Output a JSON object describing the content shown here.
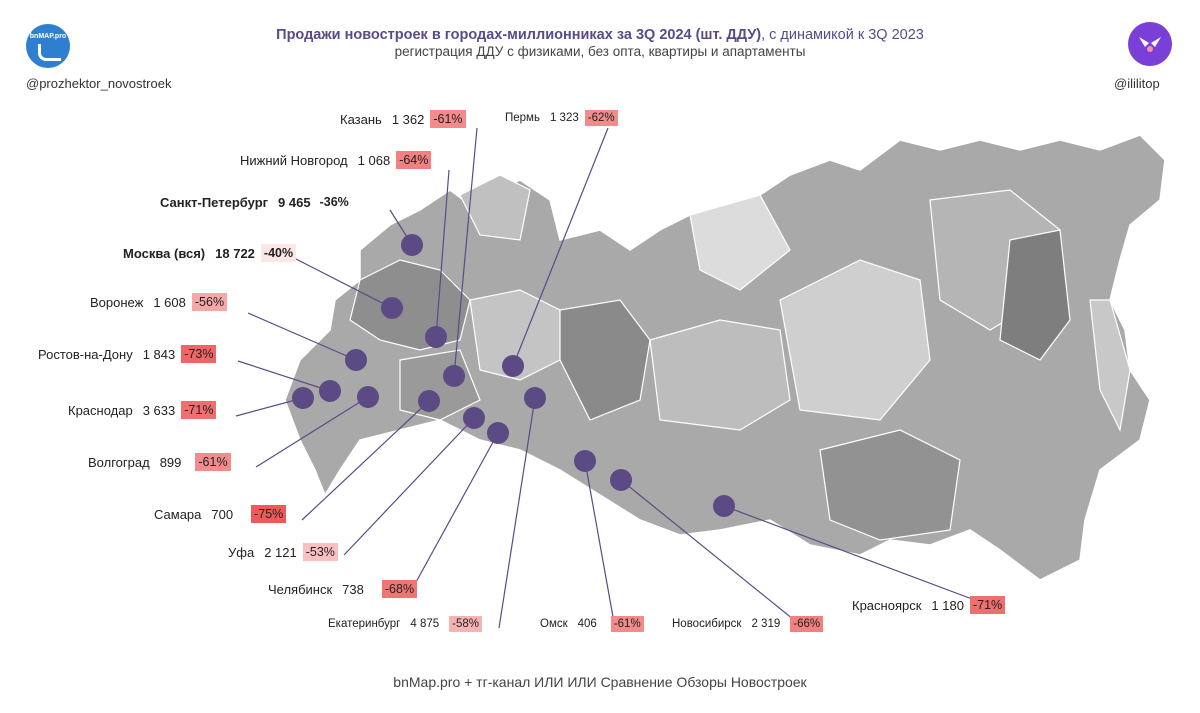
{
  "header": {
    "title_bold": "Продажи новостроек в городах-миллионниках за 3Q 2024 (шт. ДДУ)",
    "title_rest": ", с динамикой к 3Q 2023",
    "subtitle": "регистрация ДДУ с физиками, без опта, квартиры и апартаменты",
    "left_handle": "@prozhektor_novostroek",
    "right_handle": "@ililitop",
    "logo_text": "bnMAP.pro"
  },
  "footer": "bnMap.pro + тг-канал ИЛИ ИЛИ Сравнение Обзоры Новостроек",
  "colors": {
    "accent": "#5a4a8a",
    "dot": "#5c4a85",
    "map_dark": "#8c8c8c",
    "map_light": "#c8c8c8"
  },
  "cities": [
    {
      "name": "Казань",
      "value": "1 362",
      "change": "-61%",
      "color": "#f28b8b"
    },
    {
      "name": "Пермь",
      "value": "1 323",
      "change": "-62%",
      "color": "#f28b8b"
    },
    {
      "name": "Нижний Новгород",
      "value": "1 068",
      "change": "-64%",
      "color": "#f28080"
    },
    {
      "name": "Санкт-Петербург",
      "value": "9 465",
      "change": "-36%",
      "color": "#ffffff"
    },
    {
      "name": "Москва (вся)",
      "value": "18 722",
      "change": "-40%",
      "color": "#fde6e6"
    },
    {
      "name": "Воронеж",
      "value": "1 608",
      "change": "-56%",
      "color": "#f5a8a8"
    },
    {
      "name": "Ростов-на-Дону",
      "value": "1 843",
      "change": "-73%",
      "color": "#ee6565"
    },
    {
      "name": "Краснодар",
      "value": "3 633",
      "change": "-71%",
      "color": "#ef6e6e"
    },
    {
      "name": "Волгоград",
      "value": "899",
      "change": "-61%",
      "color": "#f28b8b"
    },
    {
      "name": "Самара",
      "value": "700",
      "change": "-75%",
      "color": "#ec5a5a"
    },
    {
      "name": "Уфа",
      "value": "2 121",
      "change": "-53%",
      "color": "#f8c0c0"
    },
    {
      "name": "Челябинск",
      "value": "738",
      "change": "-68%",
      "color": "#f07575"
    },
    {
      "name": "Екатеринбург",
      "value": "4 875",
      "change": "-58%",
      "color": "#f6b3b3"
    },
    {
      "name": "Омск",
      "value": "406",
      "change": "-61%",
      "color": "#f28b8b"
    },
    {
      "name": "Новосибирск",
      "value": "2 319",
      "change": "-66%",
      "color": "#f28080"
    },
    {
      "name": "Красноярск",
      "value": "1 180",
      "change": "-71%",
      "color": "#ef6e6e"
    }
  ]
}
